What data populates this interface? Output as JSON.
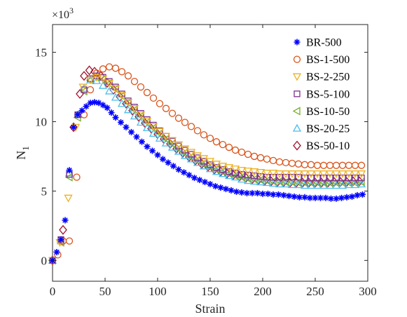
{
  "chart_data": {
    "type": "scatter",
    "xlabel": "Strain",
    "ylabel": "N",
    "ylabel_subscript": "1",
    "y_multiplier": "×10",
    "y_multiplier_exp": "3",
    "xlim": [
      0,
      300
    ],
    "ylim": [
      -1.5,
      17
    ],
    "x_ticks": [
      0,
      50,
      100,
      150,
      200,
      250,
      300
    ],
    "y_ticks": [
      0,
      5,
      10,
      15
    ],
    "x_tick_labels": [
      "0",
      "50",
      "100",
      "150",
      "200",
      "250",
      "300"
    ],
    "y_tick_labels": [
      "0",
      "5",
      "10",
      "15"
    ],
    "grid": false,
    "legend_position": "top-right",
    "series": [
      {
        "name": "BR-500",
        "color": "#0000ff",
        "marker": "asterisk",
        "x": [
          0,
          4,
          8,
          12,
          16,
          20,
          24,
          28,
          32,
          36,
          40,
          44,
          48,
          52,
          56,
          60,
          65,
          70,
          75,
          80,
          85,
          90,
          95,
          100,
          105,
          110,
          115,
          120,
          125,
          130,
          135,
          140,
          145,
          150,
          155,
          160,
          165,
          170,
          175,
          180,
          185,
          190,
          195,
          200,
          205,
          210,
          215,
          220,
          225,
          230,
          235,
          240,
          245,
          250,
          255,
          260,
          265,
          270,
          275,
          280,
          285,
          290,
          295
        ],
        "y": [
          0,
          0.6,
          1.5,
          2.9,
          6.5,
          9.6,
          10.5,
          10.8,
          11.1,
          11.35,
          11.4,
          11.35,
          11.2,
          11.0,
          10.65,
          10.3,
          9.95,
          9.6,
          9.25,
          8.9,
          8.55,
          8.2,
          7.9,
          7.6,
          7.3,
          7.05,
          6.8,
          6.55,
          6.35,
          6.15,
          5.95,
          5.8,
          5.65,
          5.5,
          5.35,
          5.25,
          5.15,
          5.05,
          4.95,
          4.9,
          4.85,
          4.85,
          4.85,
          4.8,
          4.8,
          4.75,
          4.75,
          4.7,
          4.65,
          4.6,
          4.55,
          4.55,
          4.5,
          4.5,
          4.5,
          4.5,
          4.45,
          4.45,
          4.5,
          4.55,
          4.6,
          4.7,
          4.75
        ]
      },
      {
        "name": "BS-1-500",
        "color": "#d95319",
        "marker": "circle",
        "x": [
          0,
          5,
          10,
          16,
          23,
          30,
          36,
          42,
          48,
          54,
          60,
          66,
          72,
          78,
          84,
          90,
          96,
          102,
          108,
          114,
          120,
          126,
          132,
          138,
          144,
          150,
          156,
          162,
          168,
          174,
          180,
          186,
          192,
          198,
          204,
          210,
          216,
          222,
          228,
          234,
          240,
          246,
          252,
          258,
          264,
          270,
          276,
          282,
          288,
          294
        ],
        "y": [
          0,
          0.4,
          1.4,
          1.4,
          6.0,
          10.5,
          12.3,
          13.5,
          13.8,
          13.95,
          13.85,
          13.6,
          13.3,
          12.9,
          12.5,
          12.1,
          11.7,
          11.3,
          10.95,
          10.6,
          10.25,
          9.95,
          9.65,
          9.35,
          9.05,
          8.8,
          8.55,
          8.35,
          8.15,
          7.95,
          7.8,
          7.65,
          7.5,
          7.4,
          7.3,
          7.2,
          7.1,
          7.05,
          7.0,
          6.95,
          6.9,
          6.9,
          6.85,
          6.85,
          6.85,
          6.85,
          6.85,
          6.85,
          6.85,
          6.85
        ]
      },
      {
        "name": "BS-2-250",
        "color": "#edb120",
        "marker": "triangle-down",
        "x": [
          0,
          7,
          15,
          22,
          29,
          36,
          42,
          48,
          54,
          60,
          66,
          72,
          78,
          84,
          90,
          96,
          102,
          108,
          114,
          120,
          126,
          132,
          138,
          144,
          150,
          156,
          162,
          168,
          174,
          180,
          186,
          192,
          198,
          204,
          210,
          216,
          222,
          228,
          234,
          240,
          246,
          252,
          258,
          264,
          270,
          276,
          282,
          288,
          294
        ],
        "y": [
          0,
          1.3,
          4.5,
          9.6,
          12.5,
          13.0,
          13.2,
          13.1,
          12.8,
          12.4,
          11.9,
          11.4,
          10.95,
          10.5,
          10.05,
          9.65,
          9.3,
          8.95,
          8.65,
          8.35,
          8.05,
          7.8,
          7.55,
          7.35,
          7.15,
          6.95,
          6.8,
          6.7,
          6.6,
          6.5,
          6.45,
          6.4,
          6.35,
          6.3,
          6.3,
          6.25,
          6.25,
          6.25,
          6.25,
          6.25,
          6.25,
          6.25,
          6.25,
          6.25,
          6.25,
          6.25,
          6.25,
          6.25,
          6.25
        ]
      },
      {
        "name": "BS-5-100",
        "color": "#7e2f8e",
        "marker": "square",
        "x": [
          0,
          8,
          16,
          24,
          30,
          36,
          42,
          48,
          54,
          60,
          66,
          72,
          78,
          84,
          90,
          96,
          102,
          108,
          114,
          120,
          126,
          132,
          138,
          144,
          150,
          156,
          162,
          168,
          174,
          180,
          186,
          192,
          198,
          204,
          210,
          216,
          222,
          228,
          234,
          240,
          246,
          252,
          258,
          264,
          270,
          276,
          282,
          288,
          294
        ],
        "y": [
          0,
          1.5,
          6.2,
          10.5,
          12.3,
          13.1,
          13.3,
          13.2,
          12.9,
          12.5,
          12.0,
          11.5,
          11.05,
          10.6,
          10.15,
          9.75,
          9.35,
          8.95,
          8.6,
          8.25,
          7.95,
          7.65,
          7.4,
          7.15,
          6.9,
          6.7,
          6.55,
          6.4,
          6.3,
          6.2,
          6.15,
          6.1,
          6.05,
          6.0,
          6.0,
          6.0,
          6.0,
          6.0,
          6.0,
          5.95,
          5.95,
          5.95,
          5.95,
          5.95,
          5.95,
          5.95,
          5.95,
          5.95,
          5.95
        ]
      },
      {
        "name": "BS-10-50",
        "color": "#77ac30",
        "marker": "triangle-left",
        "x": [
          0,
          8,
          16,
          24,
          30,
          36,
          42,
          48,
          54,
          60,
          66,
          72,
          78,
          84,
          90,
          96,
          102,
          108,
          114,
          120,
          126,
          132,
          138,
          144,
          150,
          156,
          162,
          168,
          174,
          180,
          186,
          192,
          198,
          204,
          210,
          216,
          222,
          228,
          234,
          240,
          246,
          252,
          258,
          264,
          270,
          276,
          282,
          288,
          294
        ],
        "y": [
          0,
          1.3,
          6.0,
          10.3,
          12.2,
          13.0,
          13.2,
          13.05,
          12.75,
          12.35,
          11.85,
          11.35,
          10.85,
          10.4,
          9.95,
          9.55,
          9.15,
          8.75,
          8.4,
          8.05,
          7.75,
          7.45,
          7.2,
          6.95,
          6.75,
          6.55,
          6.4,
          6.25,
          6.1,
          6.0,
          5.9,
          5.85,
          5.8,
          5.75,
          5.7,
          5.7,
          5.65,
          5.65,
          5.6,
          5.6,
          5.6,
          5.6,
          5.6,
          5.6,
          5.6,
          5.6,
          5.6,
          5.6,
          5.65
        ]
      },
      {
        "name": "BS-20-25",
        "color": "#4dbeee",
        "marker": "triangle-up",
        "x": [
          0,
          8,
          16,
          24,
          30,
          36,
          42,
          48,
          54,
          60,
          66,
          72,
          78,
          84,
          90,
          96,
          102,
          108,
          114,
          120,
          126,
          132,
          138,
          144,
          150,
          156,
          162,
          168,
          174,
          180,
          186,
          192,
          198,
          204,
          210,
          216,
          222,
          228,
          234,
          240,
          246,
          252,
          258,
          264,
          270,
          276,
          282,
          288,
          294
        ],
        "y": [
          0,
          1.4,
          6.3,
          10.5,
          12.4,
          13.0,
          12.95,
          12.6,
          12.2,
          11.75,
          11.3,
          10.85,
          10.4,
          9.95,
          9.55,
          9.15,
          8.8,
          8.45,
          8.15,
          7.85,
          7.55,
          7.3,
          7.05,
          6.8,
          6.6,
          6.4,
          6.25,
          6.1,
          6.0,
          5.85,
          5.75,
          5.7,
          5.65,
          5.6,
          5.55,
          5.5,
          5.5,
          5.45,
          5.45,
          5.4,
          5.4,
          5.4,
          5.4,
          5.4,
          5.4,
          5.4,
          5.45,
          5.45,
          5.5
        ]
      },
      {
        "name": "BS-50-10",
        "color": "#a2142f",
        "marker": "diamond",
        "x": [
          0,
          10,
          20,
          26,
          30,
          35,
          40,
          46,
          52,
          58,
          64,
          70,
          76,
          82,
          88,
          94,
          100,
          106,
          112,
          118,
          124,
          130,
          136,
          142,
          148,
          154,
          160,
          166,
          172,
          178,
          184,
          190,
          196,
          202,
          208,
          214,
          220,
          226,
          232,
          238,
          244,
          250,
          256,
          262,
          268,
          274,
          280,
          286,
          292
        ],
        "y": [
          0,
          2.2,
          9.6,
          12.0,
          13.3,
          13.7,
          13.6,
          13.3,
          12.8,
          12.3,
          11.8,
          11.3,
          10.8,
          10.35,
          9.9,
          9.5,
          9.1,
          8.75,
          8.4,
          8.05,
          7.75,
          7.45,
          7.2,
          6.95,
          6.75,
          6.55,
          6.4,
          6.25,
          6.15,
          6.05,
          5.95,
          5.85,
          5.8,
          5.75,
          5.7,
          5.65,
          5.65,
          5.6,
          5.6,
          5.6,
          5.6,
          5.6,
          5.6,
          5.6,
          5.65,
          5.65,
          5.65,
          5.7,
          5.7
        ]
      }
    ]
  }
}
